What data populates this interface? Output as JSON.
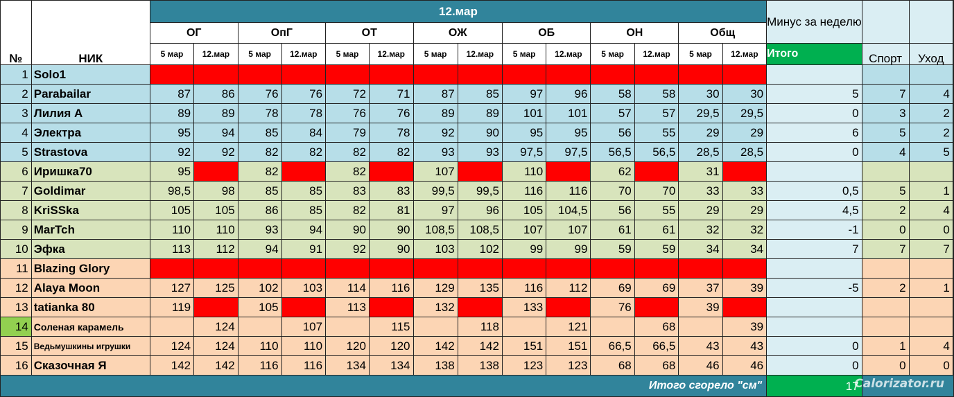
{
  "header": {
    "date_title": "12.мар",
    "num_label": "№",
    "nik_label": "НИК",
    "groups": [
      "ОГ",
      "ОпГ",
      "ОТ",
      "ОЖ",
      "ОБ",
      "ОН",
      "Общ"
    ],
    "date_a": "5 мар",
    "date_b": "12.мар",
    "minus_label": "Минус за неделю",
    "itogo_label": "Итого",
    "sport_label": "Спорт",
    "uhod_label": "Уход"
  },
  "rows": [
    {
      "num": "1",
      "nik": "Solo1",
      "group": "blue",
      "cells": [
        [
          "",
          ""
        ],
        [
          "",
          ""
        ],
        [
          "",
          ""
        ],
        [
          "",
          ""
        ],
        [
          "",
          ""
        ],
        [
          "",
          ""
        ],
        [
          "",
          ""
        ]
      ],
      "red": [
        1,
        1,
        1,
        1,
        1,
        1,
        1,
        1,
        1,
        1,
        1,
        1,
        1,
        1
      ],
      "itogo": "",
      "sport": "",
      "uhod": ""
    },
    {
      "num": "2",
      "nik": "Parabailar",
      "group": "blue",
      "cells": [
        [
          "87",
          "86"
        ],
        [
          "76",
          "76"
        ],
        [
          "72",
          "71"
        ],
        [
          "87",
          "85"
        ],
        [
          "97",
          "96"
        ],
        [
          "58",
          "58"
        ],
        [
          "30",
          "30"
        ]
      ],
      "red": [],
      "itogo": "5",
      "sport": "7",
      "uhod": "4"
    },
    {
      "num": "3",
      "nik": "Лилия А",
      "group": "blue",
      "cells": [
        [
          "89",
          "89"
        ],
        [
          "78",
          "78"
        ],
        [
          "76",
          "76"
        ],
        [
          "89",
          "89"
        ],
        [
          "101",
          "101"
        ],
        [
          "57",
          "57"
        ],
        [
          "29,5",
          "29,5"
        ]
      ],
      "red": [],
      "itogo": "0",
      "sport": "3",
      "uhod": "2"
    },
    {
      "num": "4",
      "nik": "Электра",
      "group": "blue",
      "cells": [
        [
          "95",
          "94"
        ],
        [
          "85",
          "84"
        ],
        [
          "79",
          "78"
        ],
        [
          "92",
          "90"
        ],
        [
          "95",
          "95"
        ],
        [
          "56",
          "55"
        ],
        [
          "29",
          "29"
        ]
      ],
      "red": [],
      "itogo": "6",
      "sport": "5",
      "uhod": "2"
    },
    {
      "num": "5",
      "nik": "Strastova",
      "group": "blue",
      "cells": [
        [
          "92",
          "92"
        ],
        [
          "82",
          "82"
        ],
        [
          "82",
          "82"
        ],
        [
          "93",
          "93"
        ],
        [
          "97,5",
          "97,5"
        ],
        [
          "56,5",
          "56,5"
        ],
        [
          "28,5",
          "28,5"
        ]
      ],
      "red": [],
      "itogo": "0",
      "sport": "4",
      "uhod": "5"
    },
    {
      "num": "6",
      "nik": "Иришка70",
      "group": "green",
      "cells": [
        [
          "95",
          ""
        ],
        [
          "82",
          ""
        ],
        [
          "82",
          ""
        ],
        [
          "107",
          ""
        ],
        [
          "110",
          ""
        ],
        [
          "62",
          ""
        ],
        [
          "31",
          ""
        ]
      ],
      "red": [
        0,
        1,
        0,
        1,
        0,
        1,
        0,
        1,
        0,
        1,
        0,
        1,
        0,
        1
      ],
      "itogo": "",
      "sport": "",
      "uhod": ""
    },
    {
      "num": "7",
      "nik": "Goldimar",
      "group": "green",
      "cells": [
        [
          "98,5",
          "98"
        ],
        [
          "85",
          "85"
        ],
        [
          "83",
          "83"
        ],
        [
          "99,5",
          "99,5"
        ],
        [
          "116",
          "116"
        ],
        [
          "70",
          "70"
        ],
        [
          "33",
          "33"
        ]
      ],
      "red": [],
      "itogo": "0,5",
      "sport": "5",
      "uhod": "1"
    },
    {
      "num": "8",
      "nik": "KriSSka",
      "group": "green",
      "cells": [
        [
          "105",
          "105"
        ],
        [
          "86",
          "85"
        ],
        [
          "82",
          "81"
        ],
        [
          "97",
          "96"
        ],
        [
          "105",
          "104,5"
        ],
        [
          "56",
          "55"
        ],
        [
          "29",
          "29"
        ]
      ],
      "red": [],
      "itogo": "4,5",
      "sport": "2",
      "uhod": "4"
    },
    {
      "num": "9",
      "nik": "MarTch",
      "group": "green",
      "cells": [
        [
          "110",
          "110"
        ],
        [
          "93",
          "94"
        ],
        [
          "90",
          "90"
        ],
        [
          "108,5",
          "108,5"
        ],
        [
          "107",
          "107"
        ],
        [
          "61",
          "61"
        ],
        [
          "32",
          "32"
        ]
      ],
      "red": [],
      "itogo": "-1",
      "sport": "0",
      "uhod": "0"
    },
    {
      "num": "10",
      "nik": "Эфка",
      "group": "green",
      "cells": [
        [
          "113",
          "112"
        ],
        [
          "94",
          "91"
        ],
        [
          "92",
          "90"
        ],
        [
          "103",
          "102"
        ],
        [
          "99",
          "99"
        ],
        [
          "59",
          "59"
        ],
        [
          "34",
          "34"
        ]
      ],
      "red": [],
      "itogo": "7",
      "sport": "7",
      "uhod": "7"
    },
    {
      "num": "11",
      "nik": "Blazing Glory",
      "group": "orange",
      "cells": [
        [
          "",
          ""
        ],
        [
          "",
          ""
        ],
        [
          "",
          ""
        ],
        [
          "",
          ""
        ],
        [
          "",
          ""
        ],
        [
          "",
          ""
        ],
        [
          "",
          ""
        ]
      ],
      "red": [
        1,
        1,
        1,
        1,
        1,
        1,
        1,
        1,
        1,
        1,
        1,
        1,
        1,
        1
      ],
      "itogo": "",
      "sport": "",
      "uhod": ""
    },
    {
      "num": "12",
      "nik": "Alaya Moon",
      "group": "orange",
      "cells": [
        [
          "127",
          "125"
        ],
        [
          "102",
          "103"
        ],
        [
          "114",
          "116"
        ],
        [
          "129",
          "135"
        ],
        [
          "116",
          "112"
        ],
        [
          "69",
          "69"
        ],
        [
          "37",
          "39"
        ]
      ],
      "red": [],
      "itogo": "-5",
      "sport": "2",
      "uhod": "1"
    },
    {
      "num": "13",
      "nik": "tatianka 80",
      "group": "orange",
      "cells": [
        [
          "119",
          ""
        ],
        [
          "105",
          ""
        ],
        [
          "113",
          ""
        ],
        [
          "132",
          ""
        ],
        [
          "133",
          ""
        ],
        [
          "76",
          ""
        ],
        [
          "39",
          ""
        ]
      ],
      "red": [
        0,
        1,
        0,
        1,
        0,
        1,
        0,
        1,
        0,
        1,
        0,
        1,
        0,
        1
      ],
      "itogo": "",
      "sport": "",
      "uhod": ""
    },
    {
      "num": "14",
      "nik": "Соленая карамель",
      "group": "orange",
      "numGreen": true,
      "nikSize": "small",
      "cells": [
        [
          "",
          "124"
        ],
        [
          "",
          "107"
        ],
        [
          "",
          "115"
        ],
        [
          "",
          "118"
        ],
        [
          "",
          "121"
        ],
        [
          "",
          "68"
        ],
        [
          "",
          "39"
        ]
      ],
      "red": [],
      "itogo": "",
      "sport": "",
      "uhod": ""
    },
    {
      "num": "15",
      "nik": "Ведьмушкины игрушки",
      "group": "orange",
      "nikSize": "tiny",
      "cells": [
        [
          "124",
          "124"
        ],
        [
          "110",
          "110"
        ],
        [
          "120",
          "120"
        ],
        [
          "142",
          "142"
        ],
        [
          "151",
          "151"
        ],
        [
          "66,5",
          "66,5"
        ],
        [
          "43",
          "43"
        ]
      ],
      "red": [],
      "itogo": "0",
      "sport": "1",
      "uhod": "4"
    },
    {
      "num": "16",
      "nik": "Сказочная Я",
      "group": "orange",
      "cells": [
        [
          "142",
          "142"
        ],
        [
          "116",
          "116"
        ],
        [
          "134",
          "134"
        ],
        [
          "138",
          "138"
        ],
        [
          "123",
          "123"
        ],
        [
          "68",
          "68"
        ],
        [
          "46",
          "46"
        ]
      ],
      "red": [],
      "itogo": "0",
      "sport": "0",
      "uhod": "0"
    }
  ],
  "footer": {
    "label": "Итого сгорело \"см\"",
    "total": "17"
  },
  "watermark": "Calorizator.ru",
  "colors": {
    "teal_header": "#31849b",
    "green_itogo": "#00b050",
    "red_missing": "#ff0000",
    "blue_group": "#b7dee8",
    "green_group": "#d8e4bc",
    "orange_group": "#fcd5b4",
    "pale_blue": "#daeef3"
  }
}
